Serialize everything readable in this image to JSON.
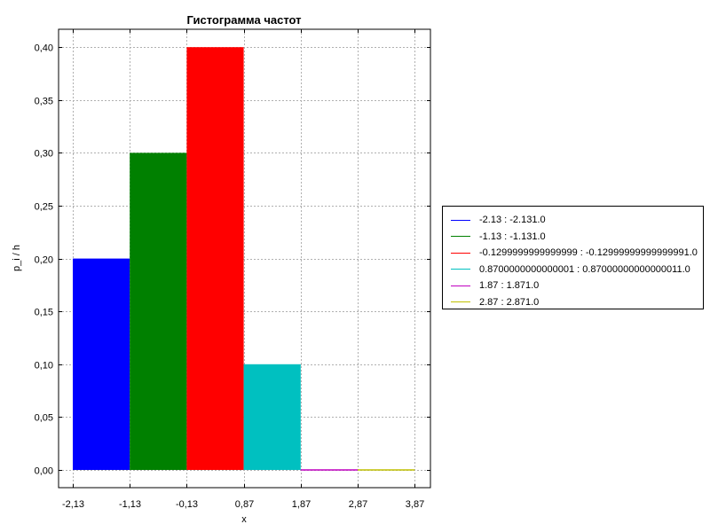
{
  "chart_data": {
    "type": "bar",
    "title": "Гистограмма частот",
    "xlabel": "x",
    "ylabel": "p_i / h",
    "xlim": [
      -2.13,
      4.0
    ],
    "ylim": [
      0,
      0.42
    ],
    "grid": true,
    "legend_position": "right",
    "x_ticks": [
      {
        "value": -2.13,
        "label": "-2,13"
      },
      {
        "value": -1.13,
        "label": "-1,13"
      },
      {
        "value": -0.13,
        "label": "-0,13"
      },
      {
        "value": 0.87,
        "label": "0,87"
      },
      {
        "value": 1.87,
        "label": "1,87"
      },
      {
        "value": 2.87,
        "label": "2,87"
      },
      {
        "value": 3.87,
        "label": "3,87"
      }
    ],
    "y_ticks": [
      {
        "value": 0.0,
        "label": "0,00"
      },
      {
        "value": 0.05,
        "label": "0,05"
      },
      {
        "value": 0.1,
        "label": "0,10"
      },
      {
        "value": 0.15,
        "label": "0,15"
      },
      {
        "value": 0.2,
        "label": "0,20"
      },
      {
        "value": 0.25,
        "label": "0,25"
      },
      {
        "value": 0.3,
        "label": "0,30"
      },
      {
        "value": 0.35,
        "label": "0,35"
      },
      {
        "value": 0.4,
        "label": "0,40"
      }
    ],
    "series": [
      {
        "name": "-2.13 : -2.131.0",
        "x_start": -2.13,
        "x_end": -1.13,
        "value": 0.2,
        "color": "#0000ff"
      },
      {
        "name": "-1.13 : -1.131.0",
        "x_start": -1.13,
        "x_end": -0.13,
        "value": 0.3,
        "color": "#008000"
      },
      {
        "name": "-0.1299999999999999 : -0.12999999999999991.0",
        "x_start": -0.13,
        "x_end": 0.87,
        "value": 0.4,
        "color": "#ff0000"
      },
      {
        "name": "0.8700000000000001 : 0.87000000000000011.0",
        "x_start": 0.87,
        "x_end": 1.87,
        "value": 0.1,
        "color": "#00c0c0"
      },
      {
        "name": "1.87 : 1.871.0",
        "x_start": 1.87,
        "x_end": 2.87,
        "value": 0.0,
        "color": "#c000c0"
      },
      {
        "name": "2.87 : 2.871.0",
        "x_start": 2.87,
        "x_end": 3.87,
        "value": 0.0,
        "color": "#c0c000"
      }
    ]
  }
}
